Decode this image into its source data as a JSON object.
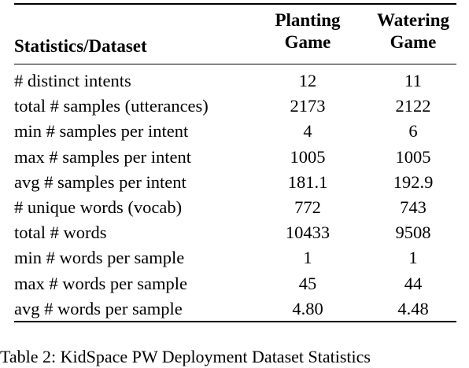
{
  "table": {
    "header": {
      "statistic": "Statistics/Dataset",
      "col1_line1": "Planting",
      "col1_line2": "Game",
      "col2_line1": "Watering",
      "col2_line2": "Game"
    },
    "rows": [
      {
        "label": "# distinct intents",
        "planting": "12",
        "watering": "11"
      },
      {
        "label": "total # samples (utterances)",
        "planting": "2173",
        "watering": "2122"
      },
      {
        "label": "min # samples per intent",
        "planting": "4",
        "watering": "6"
      },
      {
        "label": "max # samples per intent",
        "planting": "1005",
        "watering": "1005"
      },
      {
        "label": "avg # samples per intent",
        "planting": "181.1",
        "watering": "192.9"
      },
      {
        "label": "# unique words (vocab)",
        "planting": "772",
        "watering": "743"
      },
      {
        "label": "total # words",
        "planting": "10433",
        "watering": "9508"
      },
      {
        "label": "min # words per sample",
        "planting": "1",
        "watering": "1"
      },
      {
        "label": "max # words per sample",
        "planting": "45",
        "watering": "44"
      },
      {
        "label": "avg # words per sample",
        "planting": "4.80",
        "watering": "4.48"
      }
    ]
  },
  "caption": "Table 2: KidSpace PW Deployment Dataset Statistics"
}
